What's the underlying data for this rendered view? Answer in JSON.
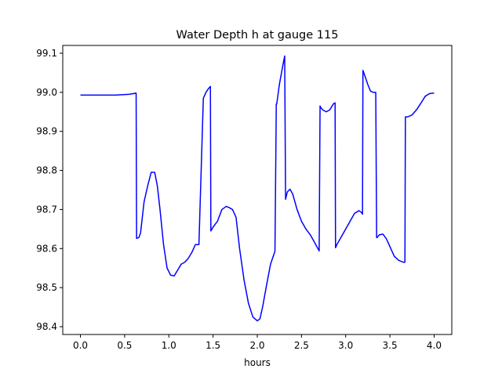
{
  "chart_data": {
    "type": "line",
    "title": "Water Depth h at gauge 115",
    "xlabel": "hours",
    "ylabel": "",
    "xlim": [
      -0.2,
      4.2
    ],
    "ylim": [
      98.38,
      99.12
    ],
    "xticks": [
      0.0,
      0.5,
      1.0,
      1.5,
      2.0,
      2.5,
      3.0,
      3.5,
      4.0
    ],
    "xtick_labels": [
      "0.0",
      "0.5",
      "1.0",
      "1.5",
      "2.0",
      "2.5",
      "3.0",
      "3.5",
      "4.0"
    ],
    "yticks": [
      98.4,
      98.5,
      98.6,
      98.7,
      98.8,
      98.9,
      99.0,
      99.1
    ],
    "ytick_labels": [
      "98.4",
      "98.5",
      "98.6",
      "98.7",
      "98.8",
      "98.9",
      "99.0",
      "99.1"
    ],
    "grid": false,
    "color": "#0000ff",
    "series": [
      {
        "x": [
          0.0,
          0.2,
          0.4,
          0.55,
          0.63,
          0.635,
          0.66,
          0.68,
          0.72,
          0.76,
          0.8,
          0.84,
          0.87,
          0.9,
          0.94,
          0.98,
          1.02,
          1.06,
          1.1,
          1.14,
          1.18,
          1.22,
          1.26,
          1.3,
          1.34,
          1.39,
          1.395,
          1.42,
          1.45,
          1.47,
          1.475,
          1.5,
          1.55,
          1.6,
          1.65,
          1.68,
          1.72,
          1.76,
          1.8,
          1.85,
          1.9,
          1.95,
          2.0,
          2.03,
          2.06,
          2.1,
          2.15,
          2.2,
          2.215,
          2.22,
          2.25,
          2.29,
          2.31,
          2.32,
          2.34,
          2.37,
          2.4,
          2.45,
          2.5,
          2.55,
          2.6,
          2.65,
          2.7,
          2.71,
          2.715,
          2.74,
          2.78,
          2.82,
          2.86,
          2.88,
          2.885,
          2.9,
          2.95,
          3.0,
          3.05,
          3.1,
          3.15,
          3.18,
          3.19,
          3.195,
          3.22,
          3.25,
          3.28,
          3.31,
          3.34,
          3.35,
          3.355,
          3.38,
          3.42,
          3.46,
          3.5,
          3.55,
          3.6,
          3.65,
          3.67,
          3.675,
          3.7,
          3.75,
          3.8,
          3.85,
          3.9,
          3.95,
          4.0
        ],
        "y": [
          98.993,
          98.993,
          98.993,
          98.995,
          98.998,
          98.626,
          98.628,
          98.64,
          98.72,
          98.76,
          98.795,
          98.795,
          98.76,
          98.7,
          98.61,
          98.55,
          98.532,
          98.53,
          98.545,
          98.56,
          98.565,
          98.575,
          98.59,
          98.61,
          98.61,
          98.985,
          98.987,
          99.0,
          99.01,
          99.015,
          98.645,
          98.655,
          98.67,
          98.7,
          98.708,
          98.705,
          98.7,
          98.68,
          98.6,
          98.52,
          98.46,
          98.425,
          98.415,
          98.42,
          98.45,
          98.5,
          98.56,
          98.593,
          98.97,
          98.97,
          99.02,
          99.07,
          99.093,
          98.726,
          98.745,
          98.752,
          98.74,
          98.7,
          98.67,
          98.65,
          98.635,
          98.615,
          98.594,
          98.965,
          98.962,
          98.955,
          98.95,
          98.955,
          98.97,
          98.973,
          98.602,
          98.61,
          98.63,
          98.65,
          98.67,
          98.69,
          98.697,
          98.692,
          98.688,
          99.056,
          99.04,
          99.02,
          99.003,
          99.0,
          99.0,
          98.628,
          98.628,
          98.635,
          98.637,
          98.625,
          98.605,
          98.58,
          98.57,
          98.565,
          98.565,
          98.937,
          98.937,
          98.942,
          98.955,
          98.972,
          98.99,
          98.997,
          98.998
        ]
      }
    ]
  }
}
